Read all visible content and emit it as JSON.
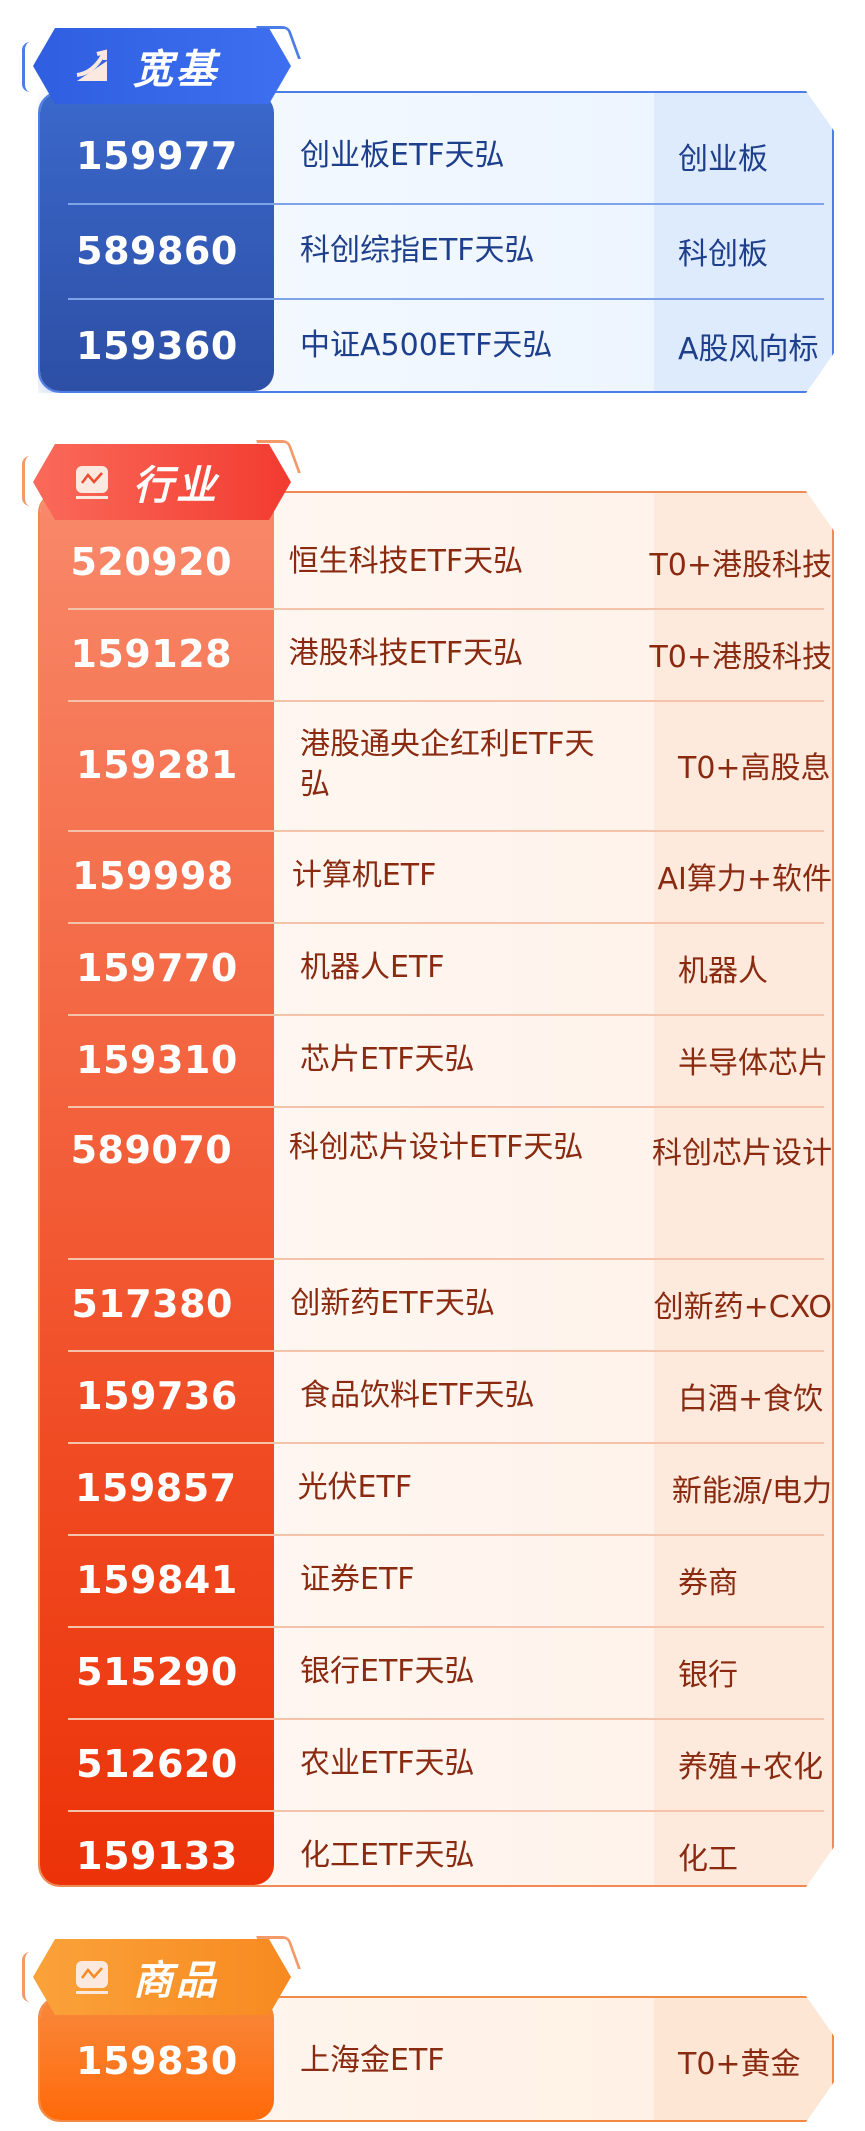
{
  "sections": [
    {
      "title": "宽基",
      "icon": "trend-up-icon",
      "color": "#2f5fe0",
      "rows": [
        {
          "code": "159977",
          "name": "创业板ETF天弘",
          "tag": "创业板"
        },
        {
          "code": "589860",
          "name": "科创综指ETF天弘",
          "tag": "科创板"
        },
        {
          "code": "159360",
          "name": "中证A500ETF天弘",
          "tag": "A股风向标"
        }
      ]
    },
    {
      "title": "行业",
      "icon": "line-chart-icon",
      "color": "#f23b30",
      "rows": [
        {
          "code": "520920",
          "name": "恒生科技ETF天弘",
          "tag": "T0+港股科技"
        },
        {
          "code": "159128",
          "name": "港股科技ETF天弘",
          "tag": "T0+港股科技"
        },
        {
          "code": "159281",
          "name": "港股通央企红利ETF天弘",
          "tag": "T0+高股息"
        },
        {
          "code": "159998",
          "name": "计算机ETF",
          "tag": "AI算力+软件"
        },
        {
          "code": "159770",
          "name": "机器人ETF",
          "tag": "机器人"
        },
        {
          "code": "159310",
          "name": "芯片ETF天弘",
          "tag": "半导体芯片"
        },
        {
          "code": "589070",
          "name": "科创芯片设计ETF天弘",
          "tag": "科创芯片设计"
        },
        {
          "code": "517380",
          "name": "创新药ETF天弘",
          "tag": "创新药+CXO"
        },
        {
          "code": "159736",
          "name": "食品饮料ETF天弘",
          "tag": "白酒+食饮"
        },
        {
          "code": "159857",
          "name": "光伏ETF",
          "tag": "新能源/电力"
        },
        {
          "code": "159841",
          "name": "证券ETF",
          "tag": "券商"
        },
        {
          "code": "515290",
          "name": "银行ETF天弘",
          "tag": "银行"
        },
        {
          "code": "512620",
          "name": "农业ETF天弘",
          "tag": "养殖+农化"
        },
        {
          "code": "159133",
          "name": "化工ETF天弘",
          "tag": "化工"
        }
      ]
    },
    {
      "title": "商品",
      "icon": "line-chart-icon",
      "color": "#f78a20",
      "rows": [
        {
          "code": "159830",
          "name": "上海金ETF",
          "tag": "T0+黄金"
        }
      ]
    }
  ]
}
